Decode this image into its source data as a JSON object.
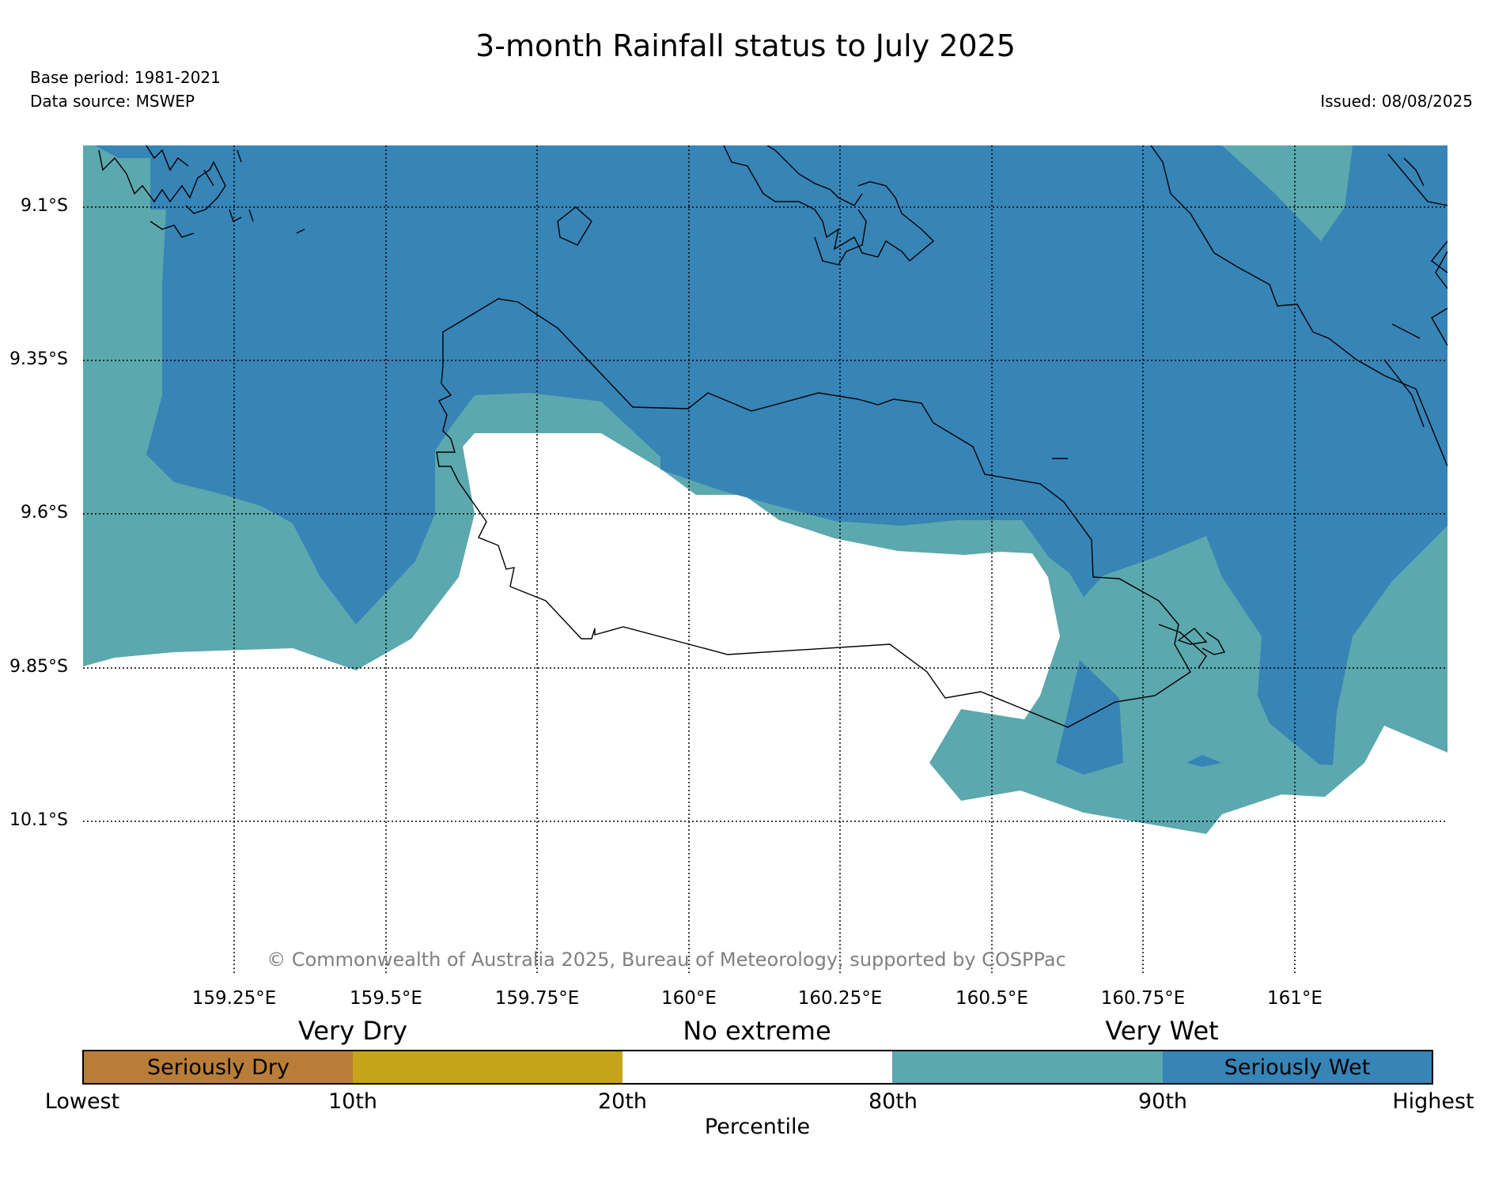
{
  "title": "3-month Rainfall status to July 2025",
  "base_period": "Base period: 1981-2021",
  "data_source": "Data source: MSWEP",
  "issued": "Issued: 08/08/2025",
  "copyright": "© Commonwealth of Australia 2025, Bureau of Meteorology, supported by COSPPac",
  "map": {
    "lat_labels": [
      "9.1°S",
      "9.35°S",
      "9.6°S",
      "9.85°S",
      "10.1°S"
    ],
    "lon_labels": [
      "159.25°E",
      "159.5°E",
      "159.75°E",
      "160°E",
      "160.25°E",
      "160.5°E",
      "160.75°E",
      "161°E"
    ],
    "colors": {
      "seriously_wet": "#3784b7",
      "very_wet": "#5ba8ae",
      "no_extreme": "#ffffff",
      "very_dry": "#c5a41b",
      "seriously_dry": "#b87d38"
    }
  },
  "legend": {
    "categories": [
      "Very Dry",
      "No extreme",
      "Very Wet"
    ],
    "boxes": [
      {
        "label": "Seriously Dry",
        "color": "#b87d38"
      },
      {
        "label": "",
        "color": "#c5a41b"
      },
      {
        "label": "",
        "color": "#ffffff"
      },
      {
        "label": "",
        "color": "#5ba8ae"
      },
      {
        "label": "Seriously Wet",
        "color": "#3784b7"
      }
    ],
    "ticks": [
      "Lowest",
      "10th",
      "20th",
      "80th",
      "90th",
      "Highest"
    ],
    "axis_label": "Percentile"
  }
}
